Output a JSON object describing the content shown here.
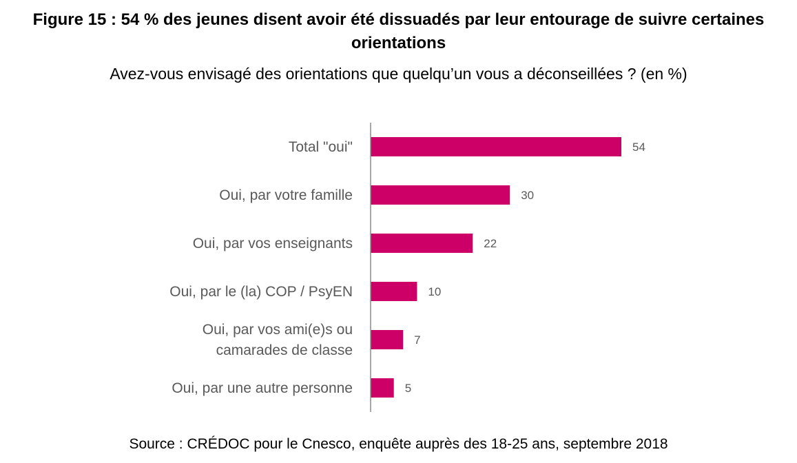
{
  "title": "Figure 15 : 54 % des jeunes disent avoir été dissuadés par leur entourage de suivre certaines orientations",
  "subtitle": "Avez-vous envisagé des orientations que quelqu’un vous a déconseillées ? (en %)",
  "source": "Source : CRÉDOC pour le Cnesco, enquête auprès des 18-25 ans, septembre 2018",
  "colors": {
    "bar": "#CC0066",
    "axis": "#8C8C8C",
    "label": "#595959"
  },
  "chart_data": {
    "type": "bar",
    "orientation": "horizontal",
    "categories": [
      "Total \"oui\"",
      "Oui, par votre famille",
      "Oui, par vos enseignants",
      "Oui, par le (la) COP / PsyEN",
      "Oui, par vos ami(e)s ou camarades de classe",
      "Oui, par une autre personne"
    ],
    "category_lines": [
      [
        "Total \"oui\""
      ],
      [
        "Oui, par votre famille"
      ],
      [
        "Oui, par vos enseignants"
      ],
      [
        "Oui, par le (la) COP / PsyEN"
      ],
      [
        "Oui, par vos ami(e)s ou",
        "camarades de classe"
      ],
      [
        "Oui, par une autre personne"
      ]
    ],
    "values": [
      54,
      30,
      22,
      10,
      7,
      5
    ],
    "value_labels": [
      "54",
      "30",
      "22",
      "10",
      "7",
      "5"
    ],
    "xlim": [
      0,
      54
    ],
    "grid": false,
    "legend": "none"
  }
}
